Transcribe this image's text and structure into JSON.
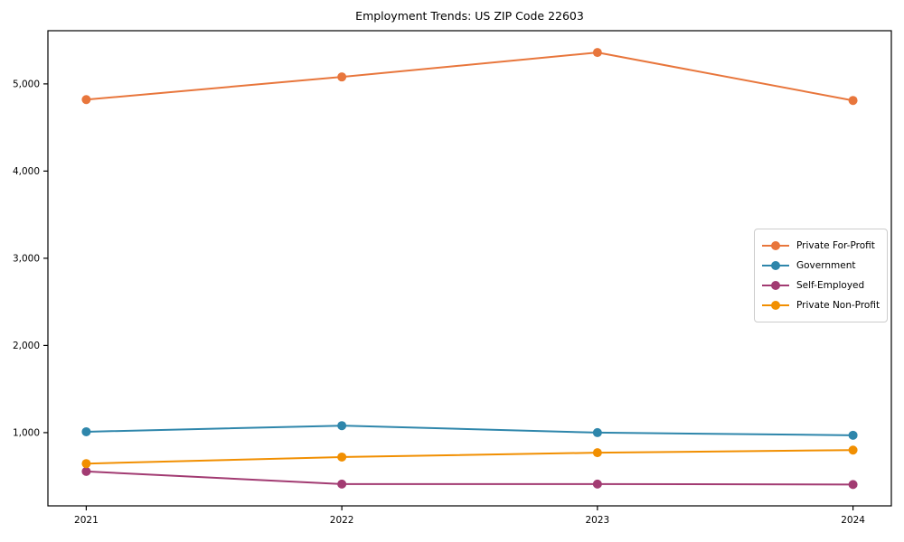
{
  "figure": {
    "background": "#ffffff",
    "frame_color": "#000000"
  },
  "chart_data": {
    "type": "line",
    "title": "Employment Trends: US ZIP Code 22603",
    "x": [
      2021,
      2022,
      2023,
      2024
    ],
    "x_tick_labels": [
      "2021",
      "2022",
      "2023",
      "2024"
    ],
    "series": [
      {
        "name": "Private For-Profit",
        "color": "#E8763C",
        "values": [
          4820,
          5080,
          5360,
          4810
        ]
      },
      {
        "name": "Government",
        "color": "#2E86AB",
        "values": [
          1010,
          1080,
          1000,
          970
        ]
      },
      {
        "name": "Self-Employed",
        "color": "#A23B72",
        "values": [
          555,
          410,
          410,
          405
        ]
      },
      {
        "name": "Private Non-Profit",
        "color": "#F18F01",
        "values": [
          645,
          720,
          770,
          800
        ]
      }
    ],
    "yticks": [
      1000,
      2000,
      3000,
      4000,
      5000
    ],
    "ytick_labels": [
      "1,000",
      "2,000",
      "3,000",
      "4,000",
      "5,000"
    ],
    "ylim": [
      160,
      5610
    ],
    "xlim": [
      2020.85,
      2024.15
    ],
    "xlabel": "",
    "ylabel": "",
    "grid": false,
    "legend_position": "center right",
    "marker": "circle",
    "line_width": 2
  }
}
